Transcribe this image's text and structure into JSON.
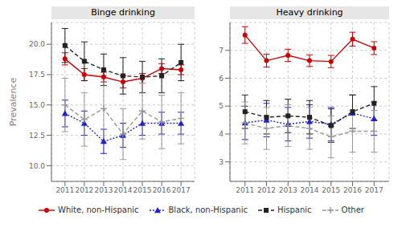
{
  "chart_data": [
    {
      "type": "line",
      "title": "Binge drinking",
      "ylabel": "Prevalence",
      "x": [
        2011,
        2012,
        2013,
        2014,
        2015,
        2016,
        2017
      ],
      "xlim": [
        2010.3,
        2017.7
      ],
      "xticks": [
        2011,
        2012,
        2013,
        2014,
        2015,
        2016,
        2017
      ],
      "ylim": [
        8.7,
        21.8
      ],
      "yticks": [
        {
          "value": 10.0,
          "label": "10.0"
        },
        12.5,
        {
          "value": 15.0,
          "label": "15.0"
        },
        17.5,
        {
          "value": 20.0,
          "label": "20.0"
        }
      ],
      "grid": true,
      "legend": "bottom",
      "series": [
        {
          "name": "White, non-Hispanic",
          "color": "#CC0000",
          "marker": "circle",
          "line_style": "solid",
          "values": [
            18.8,
            17.5,
            17.3,
            16.9,
            17.2,
            18.0,
            17.9
          ],
          "ci_low": [
            18.3,
            17.0,
            16.9,
            16.4,
            16.8,
            17.6,
            17.5
          ],
          "ci_high": [
            19.3,
            18.0,
            17.7,
            17.4,
            17.6,
            18.4,
            18.3
          ]
        },
        {
          "name": "Black, non-Hispanic",
          "color": "#2222CC",
          "marker": "triangle",
          "line_style": "dotted",
          "values": [
            14.3,
            13.5,
            12.0,
            12.5,
            13.5,
            13.5,
            13.5
          ],
          "ci_low": [
            13.2,
            12.5,
            11.0,
            11.5,
            12.5,
            12.6,
            12.6
          ],
          "ci_high": [
            15.4,
            14.5,
            13.0,
            13.5,
            14.5,
            14.4,
            14.4
          ]
        },
        {
          "name": "Hispanic",
          "color": "#222222",
          "marker": "square",
          "line_style": "dashed",
          "values": [
            19.9,
            18.6,
            17.9,
            17.4,
            17.3,
            17.4,
            18.5
          ],
          "ci_low": [
            18.5,
            17.0,
            16.6,
            15.9,
            16.0,
            16.0,
            17.0
          ],
          "ci_high": [
            21.3,
            20.2,
            19.2,
            18.9,
            18.6,
            18.8,
            20.0
          ]
        },
        {
          "name": "Other",
          "color": "#999999",
          "marker": "plus",
          "line_style": "dashed",
          "values": [
            15.0,
            13.8,
            14.7,
            12.6,
            14.5,
            13.6,
            13.9
          ],
          "ci_low": [
            12.8,
            11.6,
            12.0,
            10.5,
            12.2,
            11.4,
            11.8
          ],
          "ci_high": [
            17.2,
            16.0,
            17.4,
            14.7,
            16.8,
            15.8,
            16.0
          ]
        }
      ]
    },
    {
      "type": "line",
      "title": "Heavy drinking",
      "x": [
        2011,
        2012,
        2013,
        2014,
        2015,
        2016,
        2017
      ],
      "xlim": [
        2010.3,
        2017.7
      ],
      "xticks": [
        2011,
        2012,
        2013,
        2014,
        2015,
        2016,
        2017
      ],
      "ylim": [
        2.3,
        8.0
      ],
      "yticks": [
        3,
        4,
        5,
        6,
        7
      ],
      "grid": true,
      "legend": "bottom",
      "series": [
        {
          "name": "White, non-Hispanic",
          "color": "#CC0000",
          "marker": "circle",
          "line_style": "solid",
          "values": [
            7.55,
            6.63,
            6.82,
            6.63,
            6.6,
            7.4,
            7.08
          ],
          "ci_low": [
            7.25,
            6.4,
            6.6,
            6.42,
            6.38,
            7.15,
            6.85
          ],
          "ci_high": [
            7.85,
            6.86,
            7.04,
            6.84,
            6.82,
            7.65,
            7.31
          ]
        },
        {
          "name": "Black, non-Hispanic",
          "color": "#2222CC",
          "marker": "triangle",
          "line_style": "dotted",
          "values": [
            4.4,
            4.5,
            4.35,
            4.45,
            4.35,
            4.75,
            4.55
          ],
          "ci_low": [
            3.8,
            3.9,
            3.75,
            3.85,
            3.75,
            4.1,
            3.95
          ],
          "ci_high": [
            5.0,
            5.1,
            4.95,
            5.05,
            4.95,
            5.4,
            5.15
          ]
        },
        {
          "name": "Hispanic",
          "color": "#222222",
          "marker": "square",
          "line_style": "dashed",
          "values": [
            4.8,
            4.6,
            4.65,
            4.6,
            4.3,
            4.8,
            5.1
          ],
          "ci_low": [
            4.2,
            4.0,
            4.05,
            4.0,
            3.7,
            4.2,
            4.5
          ],
          "ci_high": [
            5.4,
            5.2,
            5.25,
            5.2,
            4.9,
            5.4,
            5.7
          ]
        },
        {
          "name": "Other",
          "color": "#999999",
          "marker": "plus",
          "line_style": "dashed",
          "values": [
            4.4,
            4.2,
            4.3,
            4.2,
            3.9,
            4.1,
            4.1
          ],
          "ci_low": [
            3.65,
            3.45,
            3.55,
            3.45,
            3.15,
            3.35,
            3.35
          ],
          "ci_high": [
            5.15,
            4.95,
            5.05,
            4.95,
            4.65,
            4.85,
            4.85
          ]
        }
      ]
    }
  ]
}
